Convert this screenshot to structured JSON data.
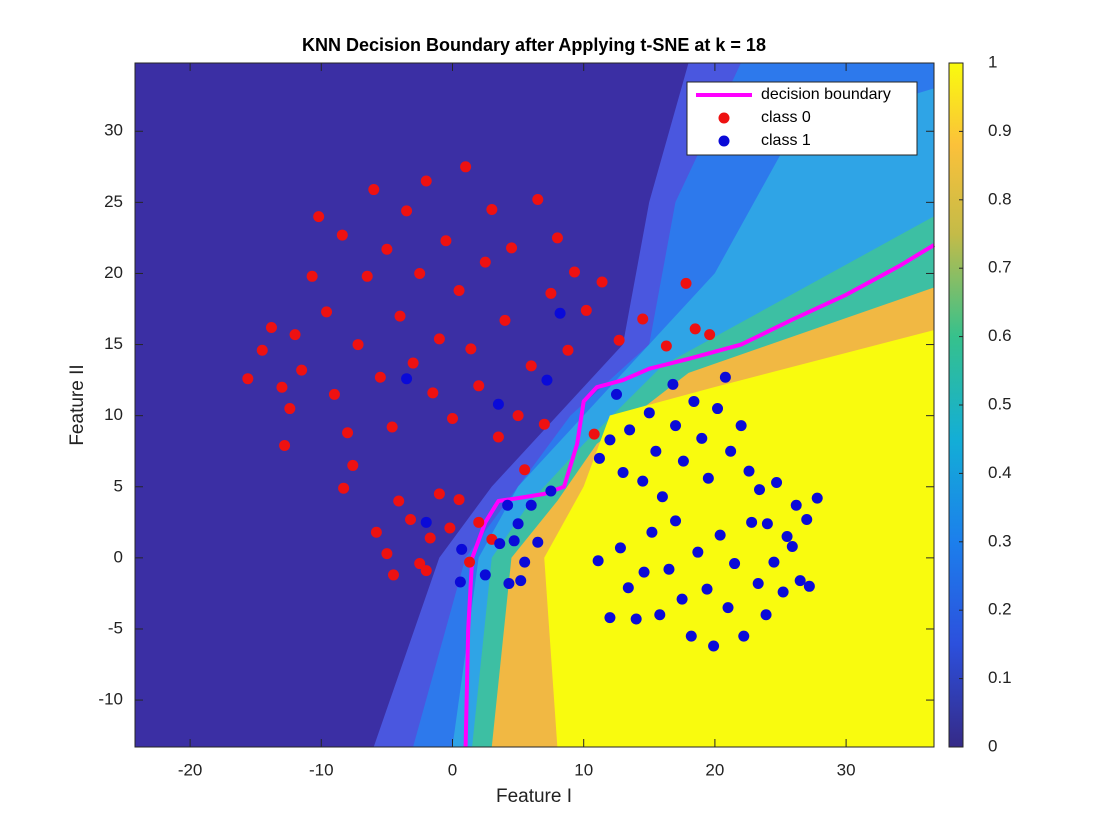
{
  "chart_data": {
    "type": "scatter",
    "title": "KNN Decision Boundary after Applying t-SNE at k = 18",
    "x_label": "Feature I",
    "y_label": "Feature II",
    "xlim": [
      -24.2,
      36.7
    ],
    "ylim": [
      -13.3,
      34.8
    ],
    "xticks": [
      -20,
      -10,
      0,
      10,
      20,
      30
    ],
    "yticks": [
      -10,
      -5,
      0,
      5,
      10,
      15,
      20,
      25,
      30
    ],
    "legend": "upper right",
    "colorbar": {
      "lim": [
        0,
        1
      ],
      "ticks": [
        0,
        0.1,
        0.2,
        0.3,
        0.4,
        0.5,
        0.6,
        0.7,
        0.8,
        0.9,
        1
      ]
    },
    "series": [
      {
        "name": "decision boundary",
        "color": "#ff00ff",
        "style": "line",
        "x": [
          1,
          1.2,
          1.5,
          2.5,
          3.5,
          5,
          7,
          8.5,
          9.5,
          10,
          11,
          13,
          15,
          18,
          22,
          26,
          30,
          34,
          36.7
        ],
        "y": [
          -13.3,
          -5,
          0,
          2.5,
          4,
          4.2,
          4.5,
          5,
          8,
          11,
          12,
          12.5,
          13.3,
          14,
          15,
          16.8,
          18.5,
          20.5,
          22
        ]
      },
      {
        "name": "class 0",
        "color": "#ee1111",
        "style": "marker",
        "x": [
          -15.6,
          -14.5,
          -13.8,
          -13,
          -12.4,
          -12,
          -11.5,
          -10.7,
          -10.2,
          -9.6,
          -9,
          -8.4,
          -8,
          -7.6,
          -7.2,
          -6.5,
          -6,
          -5.5,
          -5,
          -4.6,
          -4,
          -3.5,
          -3,
          -2.5,
          -2,
          -1.5,
          -1,
          -0.5,
          0,
          0.5,
          1,
          1.4,
          2,
          2.5,
          3,
          3.5,
          4,
          4.5,
          5,
          5.5,
          6,
          6.5,
          7,
          7.5,
          8,
          8.8,
          9.3,
          10.2,
          11.4,
          12.7,
          14.5,
          16.3,
          17.8,
          18.5,
          19.6,
          10.8,
          -12.8,
          -8.3,
          -5.8,
          -5,
          -4.1,
          -3.2,
          -2.5,
          -1.7,
          -1,
          -0.2,
          0.5,
          1.3,
          2,
          3,
          -4.5,
          -2
        ],
        "y": [
          12.6,
          14.6,
          16.2,
          12,
          10.5,
          15.7,
          13.2,
          19.8,
          24,
          17.3,
          11.5,
          22.7,
          8.8,
          6.5,
          15,
          19.8,
          25.9,
          12.7,
          21.7,
          9.2,
          17,
          24.4,
          13.7,
          20,
          26.5,
          11.6,
          15.4,
          22.3,
          9.8,
          18.8,
          27.5,
          14.7,
          12.1,
          20.8,
          24.5,
          8.5,
          16.7,
          21.8,
          10,
          6.2,
          13.5,
          25.2,
          9.4,
          18.6,
          22.5,
          14.6,
          20.1,
          17.4,
          19.4,
          15.3,
          16.8,
          14.9,
          19.3,
          16.1,
          15.7,
          8.7,
          7.9,
          4.9,
          1.8,
          0.3,
          4,
          2.7,
          -0.4,
          1.4,
          4.5,
          2.1,
          4.1,
          -0.3,
          2.5,
          1.3,
          -1.2,
          -0.9
        ]
      },
      {
        "name": "class 1",
        "color": "#0a0ad8",
        "style": "marker",
        "x": [
          11.2,
          12,
          12.5,
          13,
          13.5,
          14.5,
          15,
          15.5,
          16,
          16.8,
          17,
          17.6,
          18.4,
          19,
          19.5,
          20.2,
          20.8,
          21.2,
          22,
          22.6,
          23.4,
          24,
          24.7,
          25.5,
          26.2,
          27,
          27.8,
          12.8,
          13.4,
          14,
          14.6,
          15.2,
          15.8,
          16.5,
          17,
          17.5,
          18.2,
          18.7,
          19.4,
          19.9,
          20.4,
          21,
          21.5,
          22.2,
          22.8,
          23.3,
          23.9,
          24.5,
          25.2,
          25.9,
          26.5,
          27.2,
          11.1,
          12,
          4.3,
          4.7,
          5,
          5.5,
          6,
          6.5,
          7.5,
          5.2,
          3.6,
          2.5,
          0.6,
          0.7,
          -2,
          -3.5,
          3.5,
          7.2,
          8.2,
          4.2
        ],
        "y": [
          7,
          8.3,
          11.5,
          6,
          9,
          5.4,
          10.2,
          7.5,
          4.3,
          12.2,
          9.3,
          6.8,
          11,
          8.4,
          5.6,
          10.5,
          12.7,
          7.5,
          9.3,
          6.1,
          4.8,
          2.4,
          5.3,
          1.5,
          3.7,
          2.7,
          4.2,
          0.7,
          -2.1,
          -4.3,
          -1,
          1.8,
          -4,
          -0.8,
          2.6,
          -2.9,
          -5.5,
          0.4,
          -2.2,
          -6.2,
          1.6,
          -3.5,
          -0.4,
          -5.5,
          2.5,
          -1.8,
          -4,
          -0.3,
          -2.4,
          0.8,
          -1.6,
          -2,
          -0.2,
          -4.2,
          -1.8,
          1.2,
          2.4,
          -0.3,
          3.7,
          1.1,
          4.7,
          -1.6,
          1,
          -1.2,
          -1.7,
          0.6,
          2.5,
          12.6,
          10.8,
          12.5,
          17.2,
          3.7
        ]
      }
    ]
  }
}
